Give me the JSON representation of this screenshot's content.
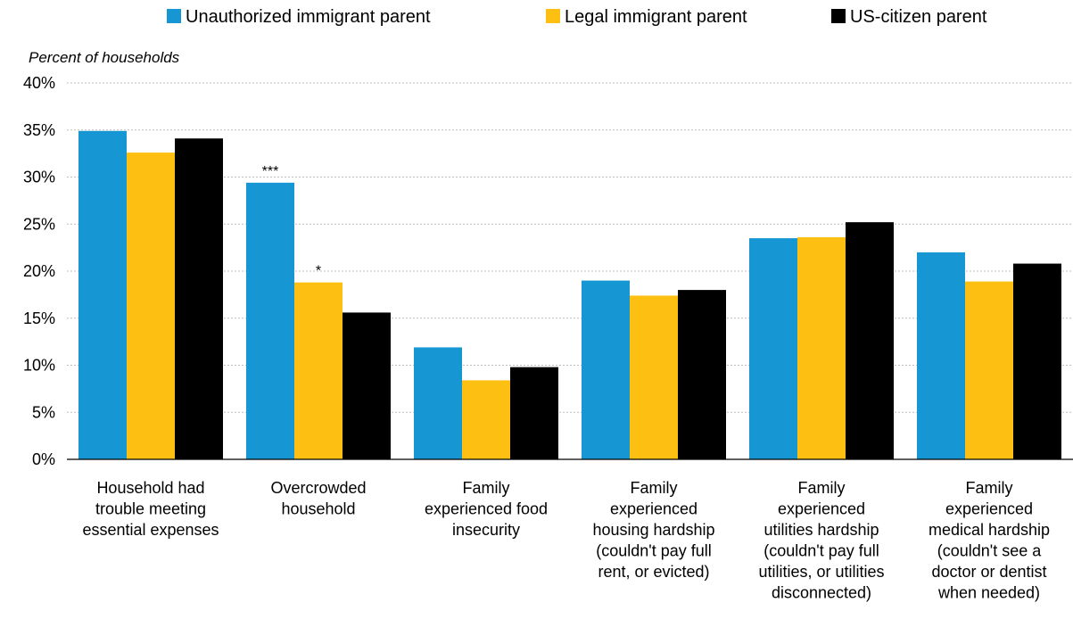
{
  "chart_data": {
    "type": "bar",
    "ylabel": "Percent of households",
    "ylim": [
      0,
      40
    ],
    "y_ticks": [
      "0%",
      "5%",
      "10%",
      "15%",
      "20%",
      "25%",
      "30%",
      "35%",
      "40%"
    ],
    "grid": true,
    "legend_position": "top",
    "categories": [
      [
        "Household had",
        "trouble meeting",
        "essential expenses"
      ],
      [
        "Overcrowded",
        "household"
      ],
      [
        "Family",
        "experienced food",
        "insecurity"
      ],
      [
        "Family",
        "experienced",
        "housing hardship",
        "(couldn't pay full",
        "rent, or evicted)"
      ],
      [
        "Family",
        "experienced",
        "utilities hardship",
        "(couldn't pay full",
        "utilities, or utilities",
        "disconnected)"
      ],
      [
        "Family",
        "experienced",
        "medical hardship",
        "(couldn't see a",
        "doctor or dentist",
        "when needed)"
      ]
    ],
    "series": [
      {
        "name": "Unauthorized immigrant parent",
        "color": "#1696d2",
        "values": [
          34.9,
          29.4,
          11.9,
          19.0,
          23.5,
          22.0
        ],
        "annotations": [
          "",
          "***",
          "",
          "",
          "",
          ""
        ]
      },
      {
        "name": "Legal immigrant parent",
        "color": "#fdbf11",
        "values": [
          32.6,
          18.8,
          8.4,
          17.4,
          23.6,
          18.9
        ],
        "annotations": [
          "",
          "*",
          "",
          "",
          "",
          ""
        ]
      },
      {
        "name": "US-citizen parent",
        "color": "#000000",
        "values": [
          34.1,
          15.6,
          9.8,
          18.0,
          25.2,
          20.8
        ],
        "annotations": [
          "",
          "",
          "",
          "",
          "",
          ""
        ]
      }
    ]
  }
}
